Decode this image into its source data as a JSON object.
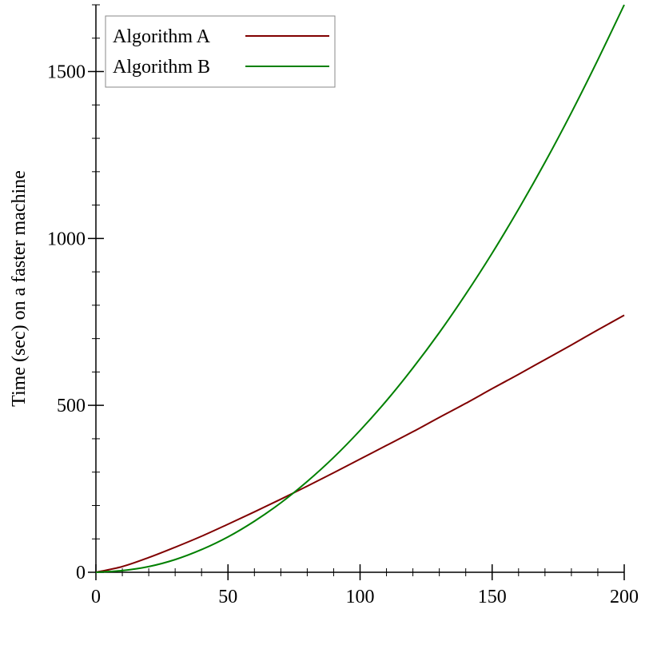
{
  "chart_data": {
    "type": "line",
    "title": "",
    "xlabel": "",
    "ylabel": "Time (sec) on a faster machine",
    "xlim": [
      0,
      200
    ],
    "ylim": [
      0,
      1700
    ],
    "x_ticks": [
      0,
      50,
      100,
      150,
      200
    ],
    "y_ticks": [
      0,
      500,
      1000,
      1500
    ],
    "x_minor_step": 10,
    "y_minor_step": 100,
    "grid": false,
    "legend_position": "top-left",
    "x": [
      0,
      10,
      20,
      30,
      40,
      50,
      60,
      70,
      80,
      90,
      100,
      110,
      120,
      130,
      140,
      150,
      160,
      170,
      180,
      190,
      200
    ],
    "series": [
      {
        "name": "Algorithm A",
        "color": "#800000",
        "values": [
          0,
          17,
          44,
          75,
          108,
          144,
          181,
          219,
          258,
          298,
          339,
          380,
          421,
          464,
          506,
          550,
          593,
          637,
          681,
          726,
          770
        ]
      },
      {
        "name": "Algorithm B",
        "color": "#008000",
        "values": [
          0,
          5,
          17,
          38,
          68,
          106,
          153,
          208,
          272,
          344,
          425,
          514,
          612,
          718,
          833,
          956,
          1088,
          1228,
          1377,
          1535,
          1700
        ]
      }
    ]
  }
}
